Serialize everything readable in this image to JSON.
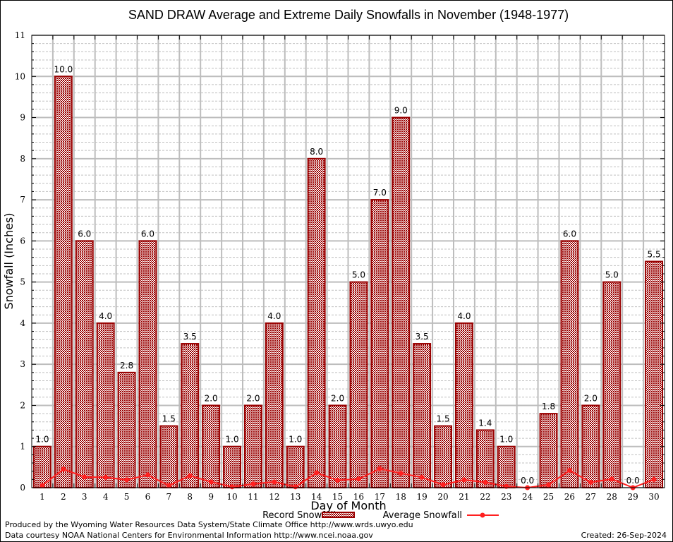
{
  "chart_data": {
    "type": "bar",
    "title": "SAND DRAW Average and Extreme Daily Snowfalls in November (1948-1977)",
    "xlabel": "Day of Month",
    "ylabel": "Snowfall (Inches)",
    "ylim": [
      0,
      11
    ],
    "yticks": [
      0,
      1,
      2,
      3,
      4,
      5,
      6,
      7,
      8,
      9,
      10,
      11
    ],
    "grid": true,
    "categories": [
      "1",
      "2",
      "3",
      "4",
      "5",
      "6",
      "7",
      "8",
      "9",
      "10",
      "11",
      "12",
      "13",
      "14",
      "15",
      "16",
      "17",
      "18",
      "19",
      "20",
      "21",
      "22",
      "23",
      "24",
      "25",
      "26",
      "27",
      "28",
      "29",
      "30"
    ],
    "series": [
      {
        "name": "Record Snowfall",
        "type": "bar",
        "color": "#990000",
        "values": [
          1.0,
          10.0,
          6.0,
          4.0,
          2.8,
          6.0,
          1.5,
          3.5,
          2.0,
          1.0,
          2.0,
          4.0,
          1.0,
          8.0,
          2.0,
          5.0,
          7.0,
          9.0,
          3.5,
          1.5,
          4.0,
          1.4,
          1.0,
          0.0,
          1.8,
          6.0,
          2.0,
          5.0,
          0.0,
          5.5
        ],
        "labels": [
          "1.0",
          "10.0",
          "6.0",
          "4.0",
          "2.8",
          "6.0",
          "1.5",
          "3.5",
          "2.0",
          "1.0",
          "2.0",
          "4.0",
          "1.0",
          "8.0",
          "2.0",
          "5.0",
          "7.0",
          "9.0",
          "3.5",
          "1.5",
          "4.0",
          "1.4",
          "1.0",
          "0.0",
          "1.8",
          "6.0",
          "2.0",
          "5.0",
          "0.0",
          "5.5"
        ]
      },
      {
        "name": "Average Snowfall",
        "type": "line",
        "color": "#ff2020",
        "values": [
          0.05,
          0.45,
          0.26,
          0.25,
          0.19,
          0.31,
          0.05,
          0.29,
          0.14,
          0.02,
          0.09,
          0.14,
          0.02,
          0.36,
          0.18,
          0.21,
          0.46,
          0.35,
          0.25,
          0.07,
          0.19,
          0.13,
          0.03,
          0.0,
          0.07,
          0.42,
          0.13,
          0.21,
          0.0,
          0.2
        ]
      }
    ],
    "legend": {
      "placement": "bottom-center",
      "entries": [
        "Record Snowfall",
        "Average Snowfall"
      ]
    }
  },
  "footer": {
    "line1": "Produced by the Wyoming Water Resources Data System/State Climate Office http://www.wrds.uwyo.edu",
    "line2": "Data courtesy NOAA National Centers for Environmental Information http://www.ncei.noaa.gov",
    "created": "Created: 26-Sep-2024"
  }
}
